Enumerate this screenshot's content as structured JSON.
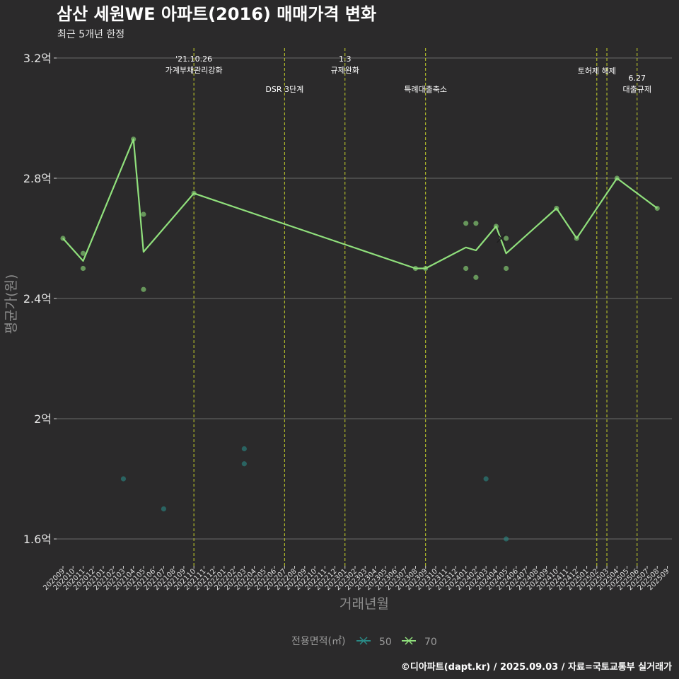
{
  "chart_data": {
    "type": "line",
    "title": "삼산 세원WE 아파트(2016) 매매가격 변화",
    "subtitle": "최근 5개년 한정",
    "xlabel": "거래년월",
    "ylabel": "평균가(원)",
    "caption": "©디아파트(dapt.kr) / 2025.09.03 / 자료=국토교통부 실거래가",
    "ylim": [
      1.5,
      3.25
    ],
    "yticks": [
      {
        "value": 1.6,
        "label": "1.6억"
      },
      {
        "value": 2.0,
        "label": "2억"
      },
      {
        "value": 2.4,
        "label": "2.4억"
      },
      {
        "value": 2.8,
        "label": "2.8억"
      },
      {
        "value": 3.2,
        "label": "3.2억"
      }
    ],
    "categories": [
      "202009",
      "202010",
      "202011",
      "202012",
      "202101",
      "202102",
      "202103",
      "202104",
      "202105",
      "202106",
      "202107",
      "202108",
      "202109",
      "202110",
      "202111",
      "202112",
      "202201",
      "202202",
      "202203",
      "202204",
      "202205",
      "202206",
      "202207",
      "202208",
      "202209",
      "202210",
      "202211",
      "202212",
      "202301",
      "202302",
      "202303",
      "202304",
      "202305",
      "202306",
      "202307",
      "202308",
      "202309",
      "202310",
      "202311",
      "202312",
      "202401",
      "202402",
      "202403",
      "202404",
      "202405",
      "202406",
      "202407",
      "202408",
      "202409",
      "202410",
      "202411",
      "202412",
      "202501",
      "202502",
      "202503",
      "202504",
      "202505",
      "202506",
      "202507",
      "202508",
      "202509"
    ],
    "legend": {
      "title": "전용면적(㎡)",
      "entries": [
        {
          "name": "50",
          "color": "#2a8a86"
        },
        {
          "name": "70",
          "color": "#90e07c"
        }
      ]
    },
    "events": [
      {
        "month": "202110",
        "lines": [
          "'21.10.26",
          "가계부채관리강화"
        ],
        "row": 0
      },
      {
        "month": "202207",
        "lines": [
          "DSR 3단계"
        ],
        "row": 2
      },
      {
        "month": "202301",
        "lines": [
          "1.3",
          "규제완화"
        ],
        "row": 0
      },
      {
        "month": "202309",
        "lines": [
          "특례대출축소"
        ],
        "row": 2
      },
      {
        "month": "202502",
        "lines": [
          "토허제 해제"
        ],
        "row": 1
      },
      {
        "month": "202503",
        "lines": [],
        "row": 1
      },
      {
        "month": "202506",
        "lines": [
          "6.27",
          "대출규제"
        ],
        "row": 3
      }
    ],
    "series": [
      {
        "name": "70",
        "color": "#90e07c",
        "line": [
          {
            "x": "202009",
            "y": 2.6
          },
          {
            "x": "202011",
            "y": 2.525
          },
          {
            "x": "202104",
            "y": 2.93
          },
          {
            "x": "202105",
            "y": 2.555
          },
          {
            "x": "202110",
            "y": 2.75
          },
          {
            "x": "202308",
            "y": 2.5
          },
          {
            "x": "202309",
            "y": 2.5
          },
          {
            "x": "202401",
            "y": 2.57
          },
          {
            "x": "202402",
            "y": 2.56
          },
          {
            "x": "202404",
            "y": 2.64
          },
          {
            "x": "202405",
            "y": 2.55
          },
          {
            "x": "202410",
            "y": 2.7
          },
          {
            "x": "202412",
            "y": 2.6
          },
          {
            "x": "202504",
            "y": 2.8
          },
          {
            "x": "202508",
            "y": 2.7
          }
        ],
        "points": [
          {
            "x": "202009",
            "y": 2.6
          },
          {
            "x": "202011",
            "y": 2.55
          },
          {
            "x": "202011",
            "y": 2.5
          },
          {
            "x": "202104",
            "y": 2.93
          },
          {
            "x": "202105",
            "y": 2.68
          },
          {
            "x": "202105",
            "y": 2.43
          },
          {
            "x": "202110",
            "y": 2.75
          },
          {
            "x": "202308",
            "y": 2.5
          },
          {
            "x": "202309",
            "y": 2.5
          },
          {
            "x": "202401",
            "y": 2.65
          },
          {
            "x": "202401",
            "y": 2.5
          },
          {
            "x": "202402",
            "y": 2.65
          },
          {
            "x": "202402",
            "y": 2.47
          },
          {
            "x": "202404",
            "y": 2.64
          },
          {
            "x": "202405",
            "y": 2.6
          },
          {
            "x": "202405",
            "y": 2.5
          },
          {
            "x": "202410",
            "y": 2.7
          },
          {
            "x": "202412",
            "y": 2.6
          },
          {
            "x": "202504",
            "y": 2.8
          },
          {
            "x": "202508",
            "y": 2.7
          }
        ]
      },
      {
        "name": "50",
        "color": "#2a8a86",
        "line": [],
        "points": [
          {
            "x": "202103",
            "y": 1.8
          },
          {
            "x": "202107",
            "y": 1.7
          },
          {
            "x": "202203",
            "y": 1.9
          },
          {
            "x": "202203",
            "y": 1.85
          },
          {
            "x": "202403",
            "y": 1.8
          },
          {
            "x": "202405",
            "y": 1.6
          }
        ]
      }
    ],
    "markers": [
      {
        "x": "202404",
        "y": 2.6,
        "series": "70",
        "shape": "x"
      }
    ]
  }
}
